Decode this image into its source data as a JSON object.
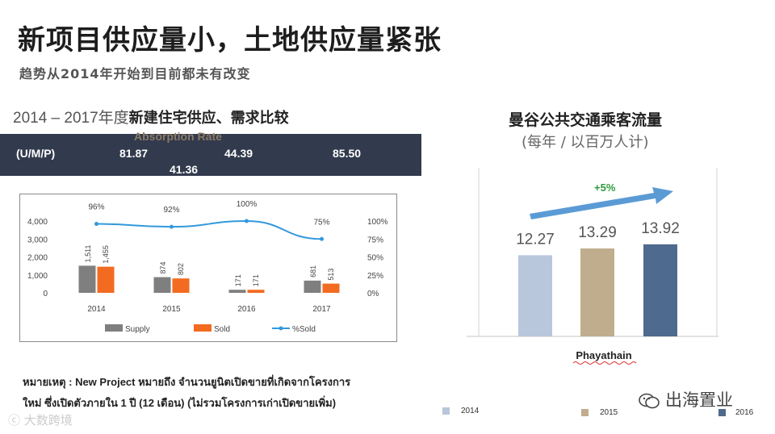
{
  "title": "新项目供应量小，土地供应量紧张",
  "subtitle": "趋势从2014年开始到目前都未有改变",
  "left_chart": {
    "heading_prefix": "2014 – 2017年度",
    "heading_bold": "新建住宅供应、需求比较",
    "absorption_label": "Absorption Rate",
    "absorption_row": {
      "label": "(U/M/P)",
      "values": [
        "81.87",
        "41.36",
        "44.39",
        "85.50"
      ]
    }
  },
  "chart_data": [
    {
      "type": "bar",
      "categories": [
        "2014",
        "2015",
        "2016",
        "2017"
      ],
      "series": [
        {
          "name": "Supply",
          "values": [
            1511,
            874,
            171,
            681
          ],
          "color": "#7f7f7f"
        },
        {
          "name": "Sold",
          "values": [
            1455,
            802,
            171,
            513
          ],
          "color": "#f26b21"
        },
        {
          "name": "%Sold",
          "type": "line",
          "axis": "right",
          "values": [
            96,
            92,
            100,
            75
          ],
          "labels": [
            "96%",
            "92%",
            "100%",
            "75%"
          ],
          "color": "#3399dd"
        }
      ],
      "data_labels": [
        [
          "1,511",
          "874",
          "171",
          "681"
        ],
        [
          "1,455",
          "802",
          "171",
          "513"
        ]
      ],
      "y_left_ticks": [
        "4,000",
        "3,000",
        "2,000",
        "1,000",
        "0"
      ],
      "y_right_ticks": [
        "100%",
        "75%",
        "50%",
        "25%",
        "0%"
      ],
      "ylim": [
        0,
        4000
      ],
      "y2lim": [
        0,
        100
      ],
      "legend": "bottom"
    },
    {
      "type": "bar",
      "title": "曼谷公共交通乘客流量",
      "subtitle": "(每年 / 以百万人计)",
      "categories": [
        "Phayathain"
      ],
      "series": [
        {
          "name": "2014",
          "values": [
            12.27
          ],
          "color": "#b9c7dc"
        },
        {
          "name": "2015",
          "values": [
            13.29
          ],
          "color": "#c0ad8e"
        },
        {
          "name": "2016",
          "values": [
            13.92
          ],
          "color": "#4f6a8f"
        }
      ],
      "data_labels": [
        "12.27",
        "13.29",
        "13.92"
      ],
      "annotation": "+5%",
      "annotation_color": "#2e9a3e",
      "arrow_color": "#5b9bd5",
      "xlabel": "Phayathain",
      "legend": "bottom"
    }
  ],
  "note": {
    "line1": "หมายเหตุ  : New Project หมายถึง  จำนวนยูนิตเปิดขายที่เกิดจากโครงการ",
    "line2": "ใหม่  ซึ่งเปิดตัวภายใน  1 ปี  (12  เดือน) (ไม่รวมโครงการเก่าเปิดขายเพิ่ม)"
  },
  "watermark_left": "大数跨境",
  "watermark_right": "出海置业",
  "watermark_right_icon": "wechat-icon"
}
